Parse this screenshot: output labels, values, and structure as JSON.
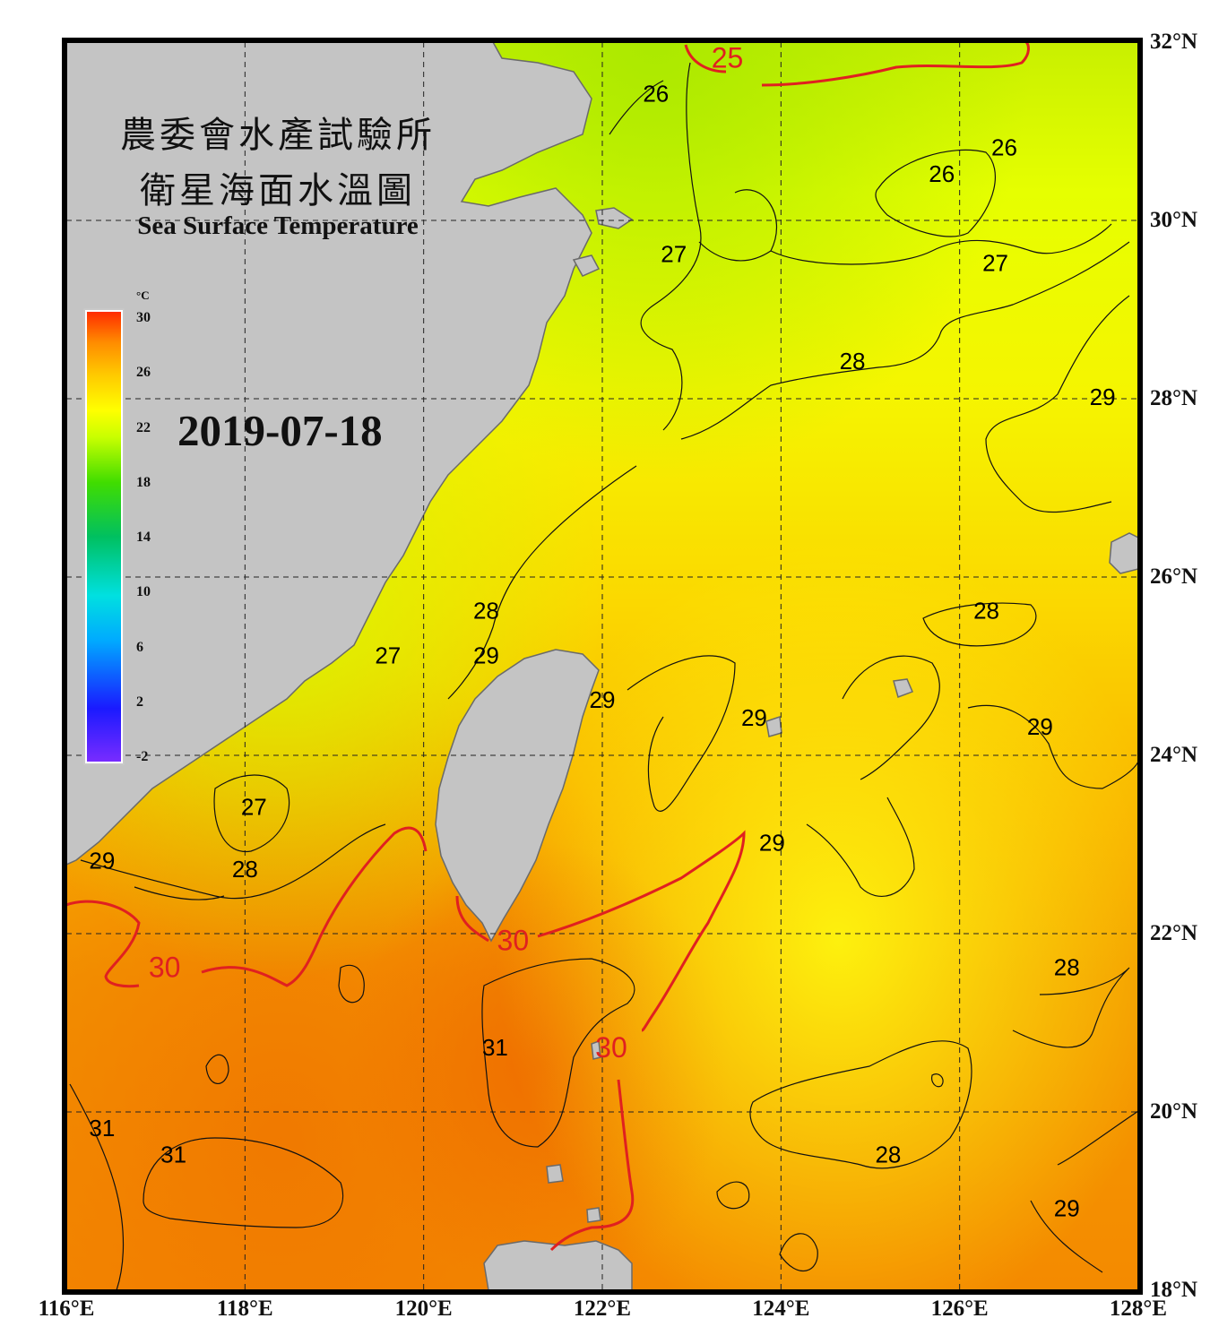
{
  "title": {
    "zh_line1": "農委會水產試驗所",
    "zh_line2": "衛星海面水溫圖",
    "en": "Sea Surface Temperature"
  },
  "date": "2019-07-18",
  "colorbar": {
    "unit": "°C",
    "ticks": [
      "30",
      "26",
      "22",
      "18",
      "14",
      "10",
      "6",
      "2",
      "-2"
    ],
    "range": [
      -2,
      30
    ],
    "colors": [
      "#7a2cff",
      "#1a1aff",
      "#00aaff",
      "#00e0e0",
      "#00c060",
      "#40dd00",
      "#c8ff00",
      "#ffff00",
      "#ffc800",
      "#ff8c00",
      "#ff2a00"
    ]
  },
  "axes": {
    "lon_labels": [
      "116°E",
      "118°E",
      "120°E",
      "122°E",
      "124°E",
      "126°E",
      "128°E"
    ],
    "lat_labels": [
      "32°N",
      "30°N",
      "28°N",
      "26°N",
      "24°N",
      "22°N",
      "20°N",
      "18°N"
    ],
    "lon_range": [
      116,
      128
    ],
    "lat_range": [
      18,
      32
    ],
    "grid": true
  },
  "isotherm_labels": [
    {
      "text": "25",
      "lon": 123.4,
      "lat": 31.8,
      "color": "#e02020"
    },
    {
      "text": "26",
      "lon": 122.6,
      "lat": 31.4,
      "color": "#000000"
    },
    {
      "text": "26",
      "lon": 126.5,
      "lat": 30.8,
      "color": "#000000"
    },
    {
      "text": "26",
      "lon": 125.8,
      "lat": 30.5,
      "color": "#000000"
    },
    {
      "text": "27",
      "lon": 122.8,
      "lat": 29.6,
      "color": "#000000"
    },
    {
      "text": "27",
      "lon": 126.4,
      "lat": 29.5,
      "color": "#000000"
    },
    {
      "text": "28",
      "lon": 124.8,
      "lat": 28.4,
      "color": "#000000"
    },
    {
      "text": "29",
      "lon": 127.6,
      "lat": 28.0,
      "color": "#000000"
    },
    {
      "text": "28",
      "lon": 120.7,
      "lat": 25.6,
      "color": "#000000"
    },
    {
      "text": "28",
      "lon": 126.3,
      "lat": 25.6,
      "color": "#000000"
    },
    {
      "text": "27",
      "lon": 119.6,
      "lat": 25.1,
      "color": "#000000"
    },
    {
      "text": "29",
      "lon": 120.7,
      "lat": 25.1,
      "color": "#000000"
    },
    {
      "text": "29",
      "lon": 122.0,
      "lat": 24.6,
      "color": "#000000"
    },
    {
      "text": "29",
      "lon": 123.7,
      "lat": 24.4,
      "color": "#000000"
    },
    {
      "text": "29",
      "lon": 126.9,
      "lat": 24.3,
      "color": "#000000"
    },
    {
      "text": "27",
      "lon": 118.1,
      "lat": 23.4,
      "color": "#000000"
    },
    {
      "text": "29",
      "lon": 123.9,
      "lat": 23.0,
      "color": "#000000"
    },
    {
      "text": "29",
      "lon": 116.4,
      "lat": 22.8,
      "color": "#000000"
    },
    {
      "text": "28",
      "lon": 118.0,
      "lat": 22.7,
      "color": "#000000"
    },
    {
      "text": "30",
      "lon": 121.0,
      "lat": 21.9,
      "color": "#e02020"
    },
    {
      "text": "30",
      "lon": 117.1,
      "lat": 21.6,
      "color": "#e02020"
    },
    {
      "text": "28",
      "lon": 127.2,
      "lat": 21.6,
      "color": "#000000"
    },
    {
      "text": "31",
      "lon": 120.8,
      "lat": 20.7,
      "color": "#000000"
    },
    {
      "text": "30",
      "lon": 122.1,
      "lat": 20.7,
      "color": "#e02020"
    },
    {
      "text": "31",
      "lon": 116.4,
      "lat": 19.8,
      "color": "#000000"
    },
    {
      "text": "31",
      "lon": 117.2,
      "lat": 19.5,
      "color": "#000000"
    },
    {
      "text": "28",
      "lon": 125.2,
      "lat": 19.5,
      "color": "#000000"
    },
    {
      "text": "29",
      "lon": 127.2,
      "lat": 18.9,
      "color": "#000000"
    }
  ]
}
